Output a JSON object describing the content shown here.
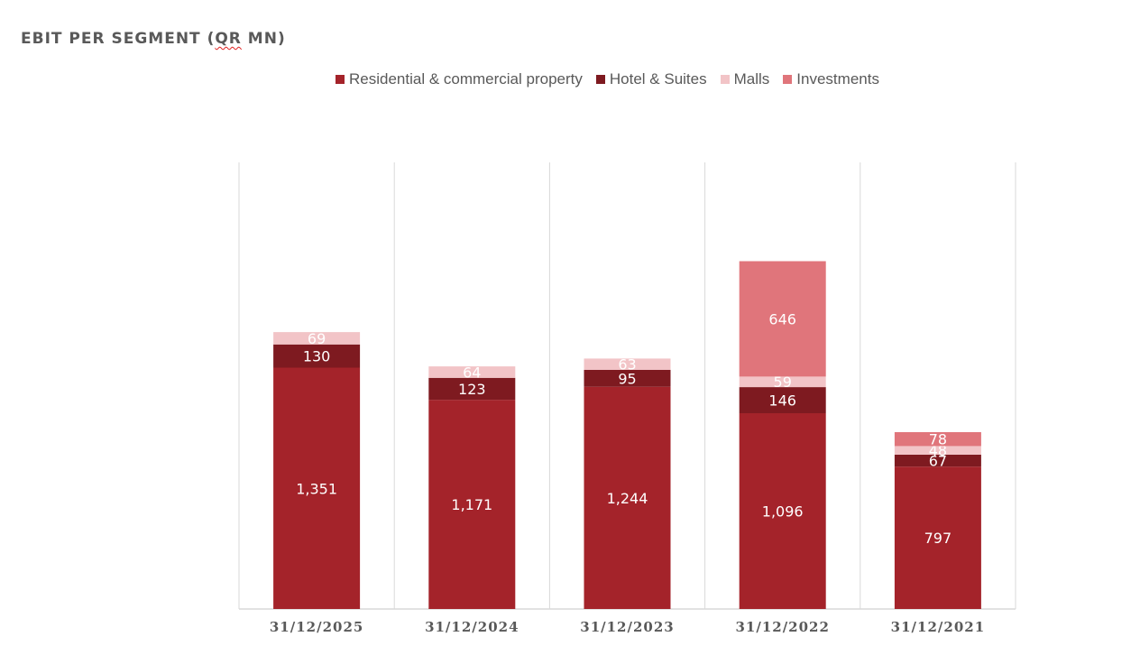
{
  "chart_data": {
    "type": "bar",
    "stacked": true,
    "title": "EBIT PER SEGMENT (QR MN)",
    "xlabel": "",
    "ylabel": "",
    "ylim": [
      0,
      2500
    ],
    "grid": false,
    "legend_position": "top",
    "categories": [
      "31/12/2025",
      "31/12/2024",
      "31/12/2023",
      "31/12/2022",
      "31/12/2021"
    ],
    "series": [
      {
        "name": "Residential & commercial property",
        "color": "#A4232A",
        "values": [
          1351,
          1171,
          1244,
          1096,
          797
        ],
        "labels": [
          "1,351",
          "1,171",
          "1,244",
          "1,096",
          "797"
        ]
      },
      {
        "name": "Hotel & Suites",
        "color": "#7E1A20",
        "values": [
          130,
          123,
          95,
          146,
          67
        ],
        "labels": [
          "130",
          "123",
          "95",
          "146",
          "67"
        ]
      },
      {
        "name": "Malls",
        "color": "#F2C4C7",
        "values": [
          69,
          64,
          63,
          59,
          48
        ],
        "labels": [
          "69",
          "64",
          "63",
          "59",
          "48"
        ]
      },
      {
        "name": "Investments",
        "color": "#E0757B",
        "values": [
          0,
          0,
          0,
          646,
          78
        ],
        "labels": [
          "",
          "",
          "",
          "646",
          "78"
        ]
      }
    ]
  }
}
